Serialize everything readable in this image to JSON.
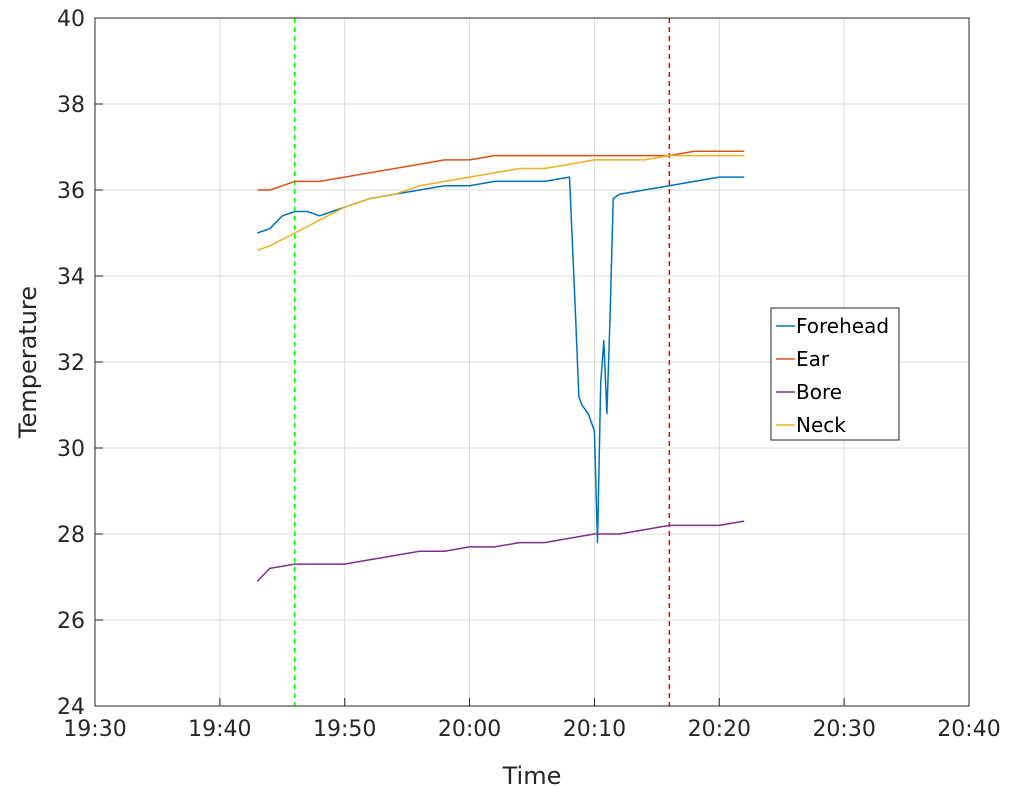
{
  "chart_data": {
    "type": "line",
    "title": "",
    "xlabel": "Time",
    "ylabel": "Temperature",
    "xlim": [
      "19:30",
      "20:40"
    ],
    "ylim": [
      24,
      40
    ],
    "x_ticks": [
      "19:30",
      "19:40",
      "19:50",
      "20:00",
      "20:10",
      "20:20",
      "20:30",
      "20:40"
    ],
    "y_ticks": [
      24,
      26,
      28,
      30,
      32,
      34,
      36,
      38,
      40
    ],
    "grid": true,
    "legend": {
      "placement": "right",
      "entries": [
        "Forehead",
        "Ear",
        "Bore",
        "Neck"
      ]
    },
    "vertical_lines": [
      {
        "time": "19:46",
        "color": "#00ff00",
        "style": "dashed"
      },
      {
        "time": "20:16",
        "color": "#ff0000",
        "style": "dashed"
      }
    ],
    "series": [
      {
        "name": "Forehead",
        "color": "#0072bd",
        "x": [
          "19:43",
          "19:44",
          "19:45",
          "19:46",
          "19:47",
          "19:48",
          "19:49",
          "19:50",
          "19:52",
          "19:54",
          "19:56",
          "19:58",
          "20:00",
          "20:02",
          "20:04",
          "20:06",
          "20:08",
          "20:08:30",
          "20:08:45",
          "20:09",
          "20:09:30",
          "20:10",
          "20:10:15",
          "20:10:30",
          "20:10:45",
          "20:11",
          "20:11:15",
          "20:11:30",
          "20:12",
          "20:14",
          "20:16",
          "20:18",
          "20:20",
          "20:22"
        ],
        "y": [
          35.0,
          35.1,
          35.4,
          35.5,
          35.5,
          35.4,
          35.5,
          35.6,
          35.8,
          35.9,
          36.0,
          36.1,
          36.1,
          36.2,
          36.2,
          36.2,
          36.3,
          33.0,
          31.2,
          31.0,
          30.8,
          30.4,
          27.8,
          31.5,
          32.5,
          30.8,
          33.0,
          35.8,
          35.9,
          36.0,
          36.1,
          36.2,
          36.3,
          36.3
        ]
      },
      {
        "name": "Ear",
        "color": "#d95319",
        "x": [
          "19:43",
          "19:44",
          "19:46",
          "19:48",
          "19:50",
          "19:52",
          "19:54",
          "19:56",
          "19:58",
          "20:00",
          "20:02",
          "20:04",
          "20:06",
          "20:08",
          "20:10",
          "20:12",
          "20:14",
          "20:16",
          "20:18",
          "20:20",
          "20:22"
        ],
        "y": [
          36.0,
          36.0,
          36.2,
          36.2,
          36.3,
          36.4,
          36.5,
          36.6,
          36.7,
          36.7,
          36.8,
          36.8,
          36.8,
          36.8,
          36.8,
          36.8,
          36.8,
          36.8,
          36.9,
          36.9,
          36.9
        ]
      },
      {
        "name": "Bore",
        "color": "#7e2f8e",
        "x": [
          "19:43",
          "19:44",
          "19:46",
          "19:48",
          "19:50",
          "19:52",
          "19:54",
          "19:56",
          "19:58",
          "20:00",
          "20:02",
          "20:04",
          "20:06",
          "20:08",
          "20:10",
          "20:12",
          "20:14",
          "20:16",
          "20:18",
          "20:20",
          "20:22"
        ],
        "y": [
          26.9,
          27.2,
          27.3,
          27.3,
          27.3,
          27.4,
          27.5,
          27.6,
          27.6,
          27.7,
          27.7,
          27.8,
          27.8,
          27.9,
          28.0,
          28.0,
          28.1,
          28.2,
          28.2,
          28.2,
          28.3
        ]
      },
      {
        "name": "Neck",
        "color": "#edb120",
        "x": [
          "19:43",
          "19:44",
          "19:46",
          "19:48",
          "19:50",
          "19:52",
          "19:54",
          "19:56",
          "19:58",
          "20:00",
          "20:02",
          "20:04",
          "20:06",
          "20:08",
          "20:10",
          "20:12",
          "20:14",
          "20:16",
          "20:18",
          "20:20",
          "20:22"
        ],
        "y": [
          34.6,
          34.7,
          35.0,
          35.3,
          35.6,
          35.8,
          35.9,
          36.1,
          36.2,
          36.3,
          36.4,
          36.5,
          36.5,
          36.6,
          36.7,
          36.7,
          36.7,
          36.8,
          36.8,
          36.8,
          36.8
        ]
      }
    ]
  }
}
